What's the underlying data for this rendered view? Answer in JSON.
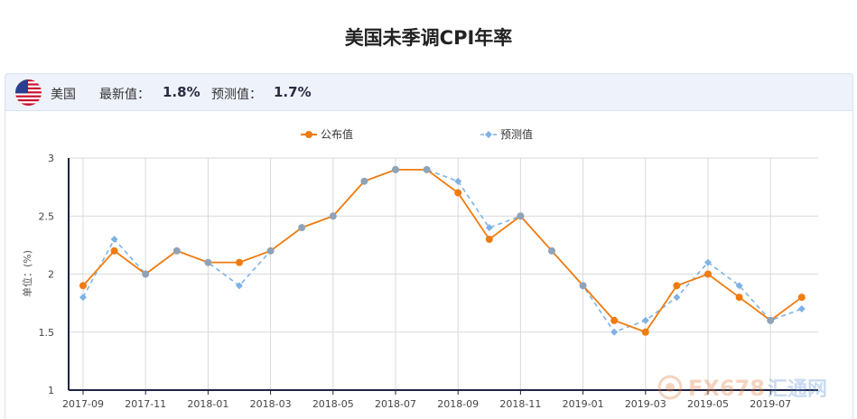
{
  "page": {
    "title": "美国未季调CPI年率"
  },
  "info": {
    "country": "美国",
    "latest_label": "最新值：",
    "latest_value": "1.8%",
    "forecast_label": "预测值：",
    "forecast_value": "1.7%",
    "flag_icon": "us-flag-icon"
  },
  "watermark": {
    "brand": "FX678",
    "suffix": "汇通网"
  },
  "colors": {
    "actual": "#f07b0f",
    "forecast": "#7fb2e5",
    "axis": "#1c2340",
    "grid": "#d9d9d9"
  },
  "chart_data": {
    "type": "line",
    "title": "",
    "ylabel": "单位：(%)",
    "xlabel": "",
    "ylim": [
      1,
      3
    ],
    "yticks": [
      "1",
      "1.5",
      "2",
      "2.5",
      "3"
    ],
    "grid": true,
    "legend_position": "top-center",
    "x": [
      "2017-09",
      "2017-10",
      "2017-11",
      "2017-12",
      "2018-01",
      "2018-02",
      "2018-03",
      "2018-04",
      "2018-05",
      "2018-06",
      "2018-07",
      "2018-08",
      "2018-09",
      "2018-10",
      "2018-11",
      "2018-12",
      "2019-01",
      "2019-02",
      "2019-03",
      "2019-04",
      "2019-05",
      "2019-06",
      "2019-07",
      "2019-08"
    ],
    "xtick_labels": [
      "2017-09",
      "2017-11",
      "2018-01",
      "2018-03",
      "2018-05",
      "2018-07",
      "2018-09",
      "2018-11",
      "2019-01",
      "2019-03",
      "2019-05",
      "2019-07"
    ],
    "series": [
      {
        "name": "公布值",
        "style": "solid-circle",
        "color": "#f07b0f",
        "values": [
          1.9,
          2.2,
          2.0,
          2.2,
          2.1,
          2.1,
          2.2,
          2.4,
          2.5,
          2.8,
          2.9,
          2.9,
          2.7,
          2.3,
          2.5,
          2.2,
          1.9,
          1.6,
          1.5,
          1.9,
          2.0,
          1.8,
          1.6,
          1.8
        ]
      },
      {
        "name": "预测值",
        "style": "dashed-diamond",
        "color": "#7fb2e5",
        "values": [
          1.8,
          2.3,
          2.0,
          2.2,
          2.1,
          1.9,
          2.2,
          2.4,
          2.5,
          2.8,
          2.9,
          2.9,
          2.8,
          2.4,
          2.5,
          2.2,
          1.9,
          1.5,
          1.6,
          1.8,
          2.1,
          1.9,
          1.6,
          1.7
        ]
      }
    ]
  }
}
